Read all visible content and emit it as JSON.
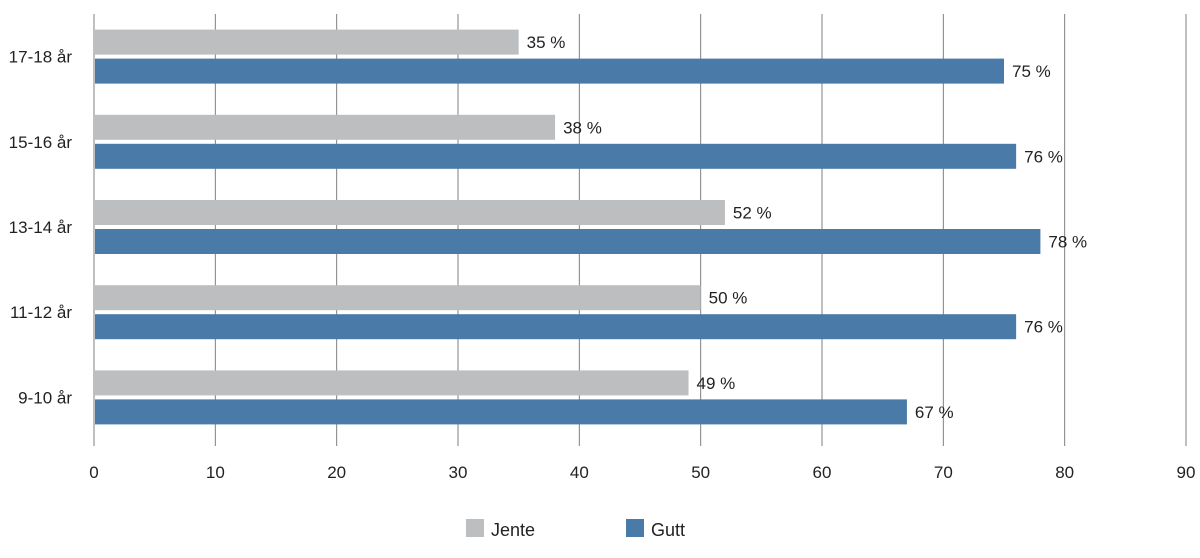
{
  "chart_data": {
    "type": "bar",
    "orientation": "horizontal",
    "categories": [
      "17-18 år",
      "15-16 år",
      "13-14 år",
      "11-12 år",
      "9-10 år"
    ],
    "series": [
      {
        "name": "Jente",
        "color": "#bcbec0",
        "values": [
          35,
          38,
          52,
          50,
          49
        ],
        "labels": [
          "35 %",
          "38 %",
          "52 %",
          "50 %",
          "49 %"
        ]
      },
      {
        "name": "Gutt",
        "color": "#4a7aa8",
        "values": [
          75,
          76,
          78,
          76,
          67
        ],
        "labels": [
          "75 %",
          "76 %",
          "78 %",
          "76 %",
          "67 %"
        ]
      }
    ],
    "xlim": [
      0,
      90
    ],
    "xticks": [
      0,
      10,
      20,
      30,
      40,
      50,
      60,
      70,
      80,
      90
    ],
    "grid": "vertical",
    "legend_position": "bottom-center",
    "title": "",
    "xlabel": "",
    "ylabel": ""
  }
}
